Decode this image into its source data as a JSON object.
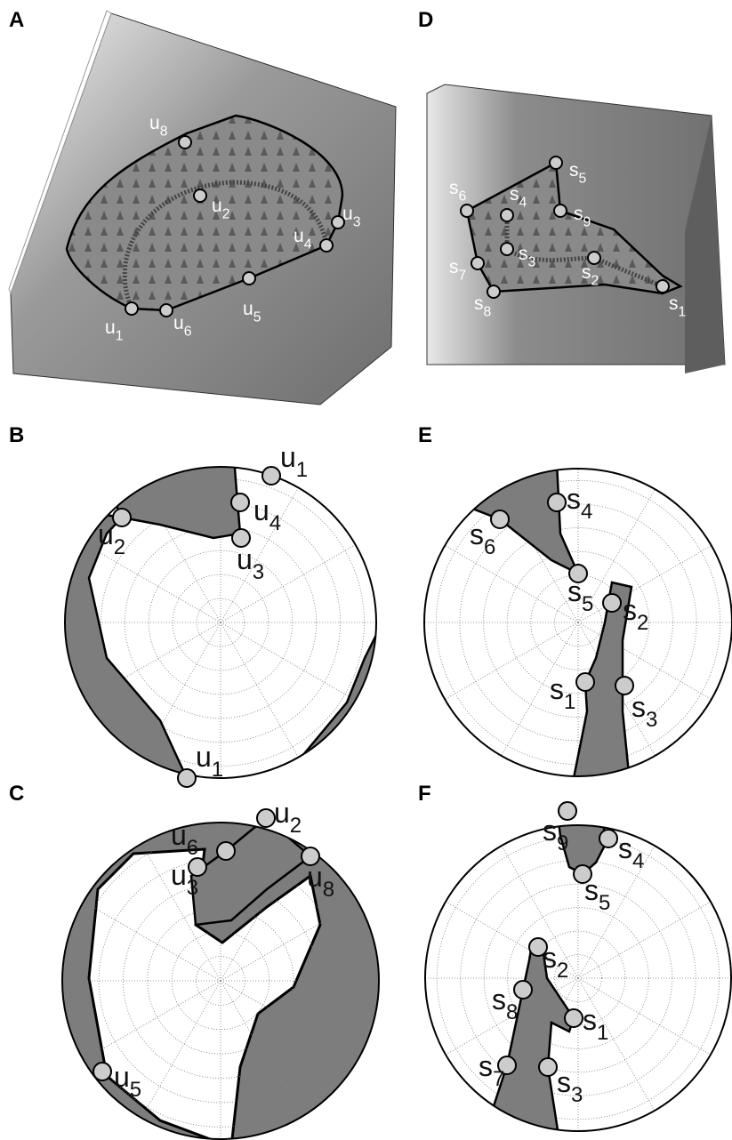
{
  "panels": [
    {
      "letter": "A",
      "points": [
        {
          "base": "u",
          "sub": "8"
        },
        {
          "base": "u",
          "sub": "2"
        },
        {
          "base": "u",
          "sub": "3"
        },
        {
          "base": "u",
          "sub": "4"
        },
        {
          "base": "u",
          "sub": "5"
        },
        {
          "base": "u",
          "sub": "1"
        },
        {
          "base": "u",
          "sub": "6"
        }
      ]
    },
    {
      "letter": "B",
      "points": [
        {
          "base": "u",
          "sub": "1"
        },
        {
          "base": "u",
          "sub": "4"
        },
        {
          "base": "u",
          "sub": "2"
        },
        {
          "base": "u",
          "sub": "3"
        },
        {
          "base": "u",
          "sub": "1"
        }
      ]
    },
    {
      "letter": "C",
      "points": [
        {
          "base": "u",
          "sub": "6"
        },
        {
          "base": "u",
          "sub": "2"
        },
        {
          "base": "u",
          "sub": "3"
        },
        {
          "base": "u",
          "sub": "8"
        },
        {
          "base": "u",
          "sub": "5"
        }
      ]
    },
    {
      "letter": "D",
      "points": [
        {
          "base": "s",
          "sub": "5"
        },
        {
          "base": "s",
          "sub": "6"
        },
        {
          "base": "s",
          "sub": "4"
        },
        {
          "base": "s",
          "sub": "9"
        },
        {
          "base": "s",
          "sub": "3"
        },
        {
          "base": "s",
          "sub": "7"
        },
        {
          "base": "s",
          "sub": "2"
        },
        {
          "base": "s",
          "sub": "8"
        },
        {
          "base": "s",
          "sub": "1"
        }
      ]
    },
    {
      "letter": "E",
      "points": [
        {
          "base": "s",
          "sub": "4"
        },
        {
          "base": "s",
          "sub": "6"
        },
        {
          "base": "s",
          "sub": "5"
        },
        {
          "base": "s",
          "sub": "2"
        },
        {
          "base": "s",
          "sub": "1"
        },
        {
          "base": "s",
          "sub": "3"
        }
      ]
    },
    {
      "letter": "F",
      "points": [
        {
          "base": "s",
          "sub": "9"
        },
        {
          "base": "s",
          "sub": "4"
        },
        {
          "base": "s",
          "sub": "5"
        },
        {
          "base": "s",
          "sub": "2"
        },
        {
          "base": "s",
          "sub": "8"
        },
        {
          "base": "s",
          "sub": "1"
        },
        {
          "base": "s",
          "sub": "7"
        },
        {
          "base": "s",
          "sub": "3"
        }
      ]
    }
  ]
}
